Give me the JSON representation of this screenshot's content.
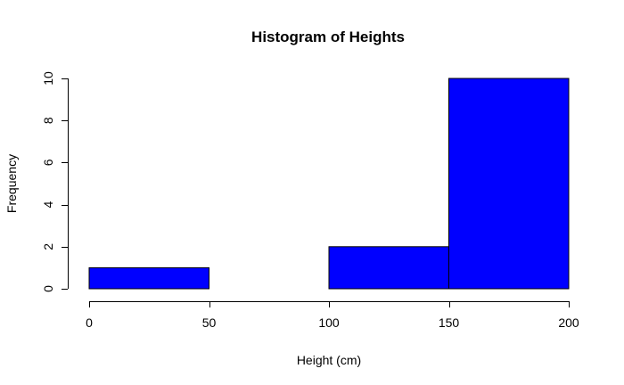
{
  "chart_data": {
    "type": "bar",
    "title": "Histogram of Heights",
    "xlabel": "Height (cm)",
    "ylabel": "Frequency",
    "bins": [
      {
        "start": 0,
        "end": 50,
        "count": 1
      },
      {
        "start": 50,
        "end": 100,
        "count": 0
      },
      {
        "start": 100,
        "end": 150,
        "count": 2
      },
      {
        "start": 150,
        "end": 200,
        "count": 10
      }
    ],
    "xlim": [
      0,
      200
    ],
    "ylim": [
      0,
      10
    ],
    "x_ticks": [
      0,
      50,
      100,
      150,
      200
    ],
    "y_ticks": [
      0,
      2,
      4,
      6,
      8,
      10
    ],
    "x_tick_labels": [
      "0",
      "50",
      "100",
      "150",
      "200"
    ],
    "y_tick_labels": [
      "0",
      "2",
      "4",
      "6",
      "8",
      "10"
    ],
    "bar_color": "#0000ff",
    "grid": false
  }
}
